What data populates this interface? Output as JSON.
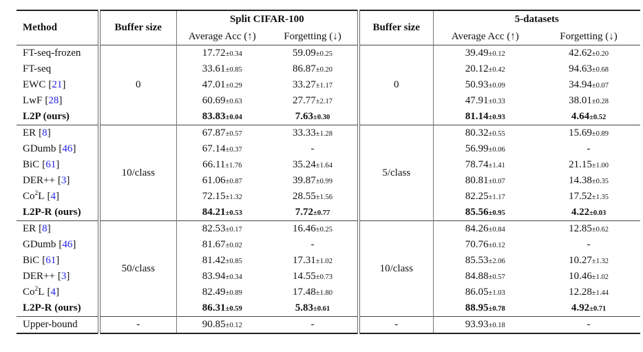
{
  "table": {
    "pm_symbol": "±",
    "cite_open": "[",
    "cite_close": "]",
    "cite_color": "#2222ee",
    "header": {
      "method": "Method",
      "buffer1": "Buffer size",
      "buffer2": "Buffer size",
      "group1": "Split CIFAR-100",
      "group2": "5-datasets",
      "avg_acc1": "Average Acc (↑)",
      "forget1": "Forgetting (↓)",
      "avg_acc2": "Average Acc (↑)",
      "forget2": "Forgetting (↓)"
    },
    "blocks": [
      {
        "buffer_cifar": "0",
        "buffer_5ds": "0",
        "rows": [
          {
            "m": {
              "pre": "FT-seq-frozen",
              "sup": "",
              "post": "",
              "cite": ""
            },
            "bold": false,
            "cifar_acc": [
              "17.72",
              "0.34"
            ],
            "cifar_forget": [
              "59.09",
              "0.25"
            ],
            "ds5_acc": [
              "39.49",
              "0.12"
            ],
            "ds5_forget": [
              "42.62",
              "0.20"
            ]
          },
          {
            "m": {
              "pre": "FT-seq",
              "sup": "",
              "post": "",
              "cite": ""
            },
            "bold": false,
            "cifar_acc": [
              "33.61",
              "0.85"
            ],
            "cifar_forget": [
              "86.87",
              "0.20"
            ],
            "ds5_acc": [
              "20.12",
              "0.42"
            ],
            "ds5_forget": [
              "94.63",
              "0.68"
            ]
          },
          {
            "m": {
              "pre": "EWC",
              "sup": "",
              "post": "",
              "cite": "21"
            },
            "bold": false,
            "cifar_acc": [
              "47.01",
              "0.29"
            ],
            "cifar_forget": [
              "33.27",
              "1.17"
            ],
            "ds5_acc": [
              "50.93",
              "0.09"
            ],
            "ds5_forget": [
              "34.94",
              "0.07"
            ]
          },
          {
            "m": {
              "pre": "LwF",
              "sup": "",
              "post": "",
              "cite": "28"
            },
            "bold": false,
            "cifar_acc": [
              "60.69",
              "0.63"
            ],
            "cifar_forget": [
              "27.77",
              "2.17"
            ],
            "ds5_acc": [
              "47.91",
              "0.33"
            ],
            "ds5_forget": [
              "38.01",
              "0.28"
            ]
          },
          {
            "m": {
              "pre": "L2P (ours)",
              "sup": "",
              "post": "",
              "cite": ""
            },
            "bold": true,
            "cifar_acc": [
              "83.83",
              "0.04"
            ],
            "cifar_forget": [
              "7.63",
              "0.30"
            ],
            "ds5_acc": [
              "81.14",
              "0.93"
            ],
            "ds5_forget": [
              "4.64",
              "0.52"
            ]
          }
        ]
      },
      {
        "buffer_cifar": "10/class",
        "buffer_5ds": "5/class",
        "rows": [
          {
            "m": {
              "pre": "ER",
              "sup": "",
              "post": "",
              "cite": "8"
            },
            "bold": false,
            "cifar_acc": [
              "67.87",
              "0.57"
            ],
            "cifar_forget": [
              "33.33",
              "1.28"
            ],
            "ds5_acc": [
              "80.32",
              "0.55"
            ],
            "ds5_forget": [
              "15.69",
              "0.89"
            ]
          },
          {
            "m": {
              "pre": "GDumb",
              "sup": "",
              "post": "",
              "cite": "46"
            },
            "bold": false,
            "cifar_acc": [
              "67.14",
              "0.37"
            ],
            "cifar_forget": [
              "-",
              ""
            ],
            "ds5_acc": [
              "56.99",
              "0.06"
            ],
            "ds5_forget": [
              "-",
              ""
            ]
          },
          {
            "m": {
              "pre": "BiC",
              "sup": "",
              "post": "",
              "cite": "61"
            },
            "bold": false,
            "cifar_acc": [
              "66.11",
              "1.76"
            ],
            "cifar_forget": [
              "35.24",
              "1.64"
            ],
            "ds5_acc": [
              "78.74",
              "1.41"
            ],
            "ds5_forget": [
              "21.15",
              "1.00"
            ]
          },
          {
            "m": {
              "pre": "DER++",
              "sup": "",
              "post": "",
              "cite": "3"
            },
            "bold": false,
            "cifar_acc": [
              "61.06",
              "0.87"
            ],
            "cifar_forget": [
              "39.87",
              "0.99"
            ],
            "ds5_acc": [
              "80.81",
              "0.07"
            ],
            "ds5_forget": [
              "14.38",
              "0.35"
            ]
          },
          {
            "m": {
              "pre": "Co",
              "sup": "2",
              "post": "L",
              "cite": "4"
            },
            "bold": false,
            "cifar_acc": [
              "72.15",
              "1.32"
            ],
            "cifar_forget": [
              "28.55",
              "1.56"
            ],
            "ds5_acc": [
              "82.25",
              "1.17"
            ],
            "ds5_forget": [
              "17.52",
              "1.35"
            ]
          },
          {
            "m": {
              "pre": "L2P-R (ours)",
              "sup": "",
              "post": "",
              "cite": ""
            },
            "bold": true,
            "cifar_acc": [
              "84.21",
              "0.53"
            ],
            "cifar_forget": [
              "7.72",
              "0.77"
            ],
            "ds5_acc": [
              "85.56",
              "0.95"
            ],
            "ds5_forget": [
              "4.22",
              "0.03"
            ]
          }
        ]
      },
      {
        "buffer_cifar": "50/class",
        "buffer_5ds": "10/class",
        "rows": [
          {
            "m": {
              "pre": "ER",
              "sup": "",
              "post": "",
              "cite": "8"
            },
            "bold": false,
            "cifar_acc": [
              "82.53",
              "0.17"
            ],
            "cifar_forget": [
              "16.46",
              "0.25"
            ],
            "ds5_acc": [
              "84.26",
              "0.84"
            ],
            "ds5_forget": [
              "12.85",
              "0.62"
            ]
          },
          {
            "m": {
              "pre": "GDumb",
              "sup": "",
              "post": "",
              "cite": "46"
            },
            "bold": false,
            "cifar_acc": [
              "81.67",
              "0.02"
            ],
            "cifar_forget": [
              "-",
              ""
            ],
            "ds5_acc": [
              "70.76",
              "0.12"
            ],
            "ds5_forget": [
              "-",
              ""
            ]
          },
          {
            "m": {
              "pre": "BiC",
              "sup": "",
              "post": "",
              "cite": "61"
            },
            "bold": false,
            "cifar_acc": [
              "81.42",
              "0.85"
            ],
            "cifar_forget": [
              "17.31",
              "1.02"
            ],
            "ds5_acc": [
              "85.53",
              "2.06"
            ],
            "ds5_forget": [
              "10.27",
              "1.32"
            ]
          },
          {
            "m": {
              "pre": "DER++",
              "sup": "",
              "post": "",
              "cite": "3"
            },
            "bold": false,
            "cifar_acc": [
              "83.94",
              "0.34"
            ],
            "cifar_forget": [
              "14.55",
              "0.73"
            ],
            "ds5_acc": [
              "84.88",
              "0.57"
            ],
            "ds5_forget": [
              "10.46",
              "1.02"
            ]
          },
          {
            "m": {
              "pre": "Co",
              "sup": "2",
              "post": "L",
              "cite": "4"
            },
            "bold": false,
            "cifar_acc": [
              "82.49",
              "0.89"
            ],
            "cifar_forget": [
              "17.48",
              "1.80"
            ],
            "ds5_acc": [
              "86.05",
              "1.03"
            ],
            "ds5_forget": [
              "12.28",
              "1.44"
            ]
          },
          {
            "m": {
              "pre": "L2P-R (ours)",
              "sup": "",
              "post": "",
              "cite": ""
            },
            "bold": true,
            "cifar_acc": [
              "86.31",
              "0.59"
            ],
            "cifar_forget": [
              "5.83",
              "0.61"
            ],
            "ds5_acc": [
              "88.95",
              "0.78"
            ],
            "ds5_forget": [
              "4.92",
              "0.71"
            ]
          }
        ]
      },
      {
        "buffer_cifar": "-",
        "buffer_5ds": "-",
        "rows": [
          {
            "m": {
              "pre": "Upper-bound",
              "sup": "",
              "post": "",
              "cite": ""
            },
            "bold": false,
            "cifar_acc": [
              "90.85",
              "0.12"
            ],
            "cifar_forget": [
              "-",
              ""
            ],
            "ds5_acc": [
              "93.93",
              "0.18"
            ],
            "ds5_forget": [
              "-",
              ""
            ]
          }
        ]
      }
    ]
  }
}
